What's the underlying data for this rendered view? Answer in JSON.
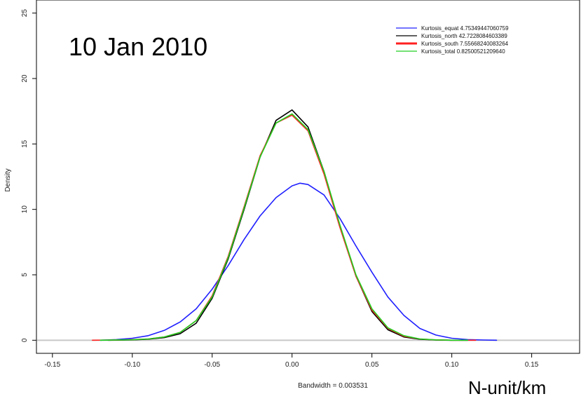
{
  "overlay": {
    "title": "10 Jan 2010",
    "unit": "N-unit/km"
  },
  "chart_data": {
    "type": "line",
    "title": "",
    "xlabel": "Bandwidth = 0.003531",
    "ylabel": "Density",
    "xlim": [
      -0.16,
      0.18
    ],
    "ylim": [
      -1,
      26
    ],
    "xticks": [
      -0.15,
      -0.1,
      -0.05,
      0.0,
      0.05,
      0.1,
      0.15
    ],
    "xtick_labels": [
      "-0.15",
      "-0.10",
      "-0.05",
      "0.00",
      "0.05",
      "0.10",
      "0.15"
    ],
    "yticks": [
      0,
      5,
      10,
      15,
      20,
      25
    ],
    "ytick_labels": [
      "0",
      "5",
      "10",
      "15",
      "20",
      "25"
    ],
    "grid": false,
    "legend_position": "top-right",
    "baseline": {
      "y": 0,
      "color": "#c8c8c8"
    },
    "series": [
      {
        "name": "Kurtosis_equat 4.75349447060759",
        "color": "#2020ff",
        "x": [
          -0.12,
          -0.11,
          -0.1,
          -0.09,
          -0.08,
          -0.07,
          -0.06,
          -0.05,
          -0.04,
          -0.03,
          -0.02,
          -0.01,
          0.0,
          0.005,
          0.01,
          0.02,
          0.03,
          0.04,
          0.05,
          0.06,
          0.07,
          0.08,
          0.09,
          0.1,
          0.11,
          0.12,
          0.128
        ],
        "y": [
          0.0,
          0.05,
          0.15,
          0.35,
          0.75,
          1.4,
          2.4,
          3.9,
          5.7,
          7.7,
          9.5,
          10.9,
          11.8,
          12.0,
          11.9,
          11.1,
          9.3,
          7.2,
          5.2,
          3.3,
          1.9,
          0.9,
          0.4,
          0.15,
          0.05,
          0.02,
          0.0
        ]
      },
      {
        "name": "Kurtosis_north 42.7228084603389",
        "color": "#000000",
        "x": [
          -0.115,
          -0.1,
          -0.09,
          -0.08,
          -0.07,
          -0.06,
          -0.05,
          -0.04,
          -0.03,
          -0.02,
          -0.01,
          0.0,
          0.01,
          0.02,
          0.03,
          0.04,
          0.05,
          0.06,
          0.07,
          0.08,
          0.09,
          0.1,
          0.11
        ],
        "y": [
          0.0,
          0.03,
          0.08,
          0.2,
          0.5,
          1.3,
          3.2,
          6.2,
          10.0,
          14.0,
          16.8,
          17.6,
          16.3,
          12.9,
          8.7,
          4.9,
          2.2,
          0.8,
          0.25,
          0.07,
          0.02,
          0.0,
          0.0
        ]
      },
      {
        "name": "Kurtosis_south 7.55668240083264",
        "color": "#ff2020",
        "x": [
          -0.125,
          -0.11,
          -0.1,
          -0.09,
          -0.08,
          -0.07,
          -0.06,
          -0.05,
          -0.04,
          -0.03,
          -0.02,
          -0.01,
          0.0,
          0.01,
          0.02,
          0.03,
          0.04,
          0.05,
          0.06,
          0.07,
          0.08,
          0.09,
          0.1,
          0.115
        ],
        "y": [
          0.0,
          0.02,
          0.05,
          0.1,
          0.25,
          0.6,
          1.5,
          3.4,
          6.4,
          10.2,
          14.1,
          16.6,
          17.2,
          16.0,
          12.7,
          8.6,
          4.9,
          2.3,
          0.9,
          0.3,
          0.1,
          0.03,
          0.0,
          0.0
        ]
      },
      {
        "name": "Kurtosis_total 0.82500521209640",
        "color": "#20d020",
        "x": [
          -0.12,
          -0.1,
          -0.09,
          -0.08,
          -0.07,
          -0.06,
          -0.05,
          -0.04,
          -0.03,
          -0.02,
          -0.01,
          0.0,
          0.01,
          0.02,
          0.03,
          0.04,
          0.05,
          0.06,
          0.07,
          0.08,
          0.09,
          0.1,
          0.11
        ],
        "y": [
          0.0,
          0.04,
          0.1,
          0.25,
          0.6,
          1.5,
          3.3,
          6.3,
          10.1,
          14.0,
          16.6,
          17.3,
          16.1,
          12.9,
          8.8,
          5.0,
          2.4,
          0.95,
          0.35,
          0.1,
          0.03,
          0.0,
          0.0
        ]
      }
    ]
  }
}
